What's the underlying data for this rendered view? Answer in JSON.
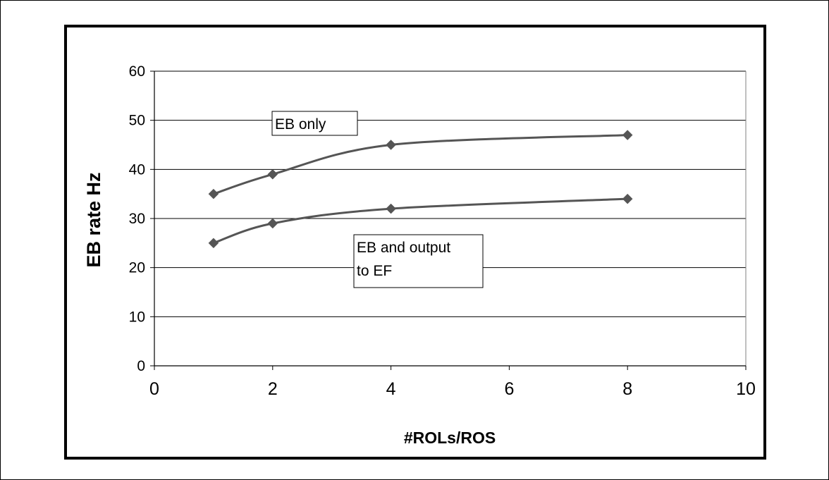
{
  "chart_data": {
    "type": "line",
    "xlabel": "#ROLs/ROS",
    "ylabel": "EB rate Hz",
    "xlim": [
      0,
      10
    ],
    "ylim": [
      0,
      60
    ],
    "x_ticks": [
      0,
      2,
      4,
      6,
      8,
      10
    ],
    "y_ticks": [
      0,
      10,
      20,
      30,
      40,
      50,
      60
    ],
    "grid": "horizontal",
    "legend": "none",
    "series_color": "#555555",
    "series": [
      {
        "x": [
          1,
          2,
          4,
          8
        ],
        "values": [
          35,
          39,
          45,
          47
        ]
      },
      {
        "x": [
          1,
          2,
          4,
          8
        ],
        "values": [
          25,
          29,
          32,
          34
        ]
      }
    ],
    "annotations": [
      {
        "lines": [
          "EB only"
        ],
        "series_index": 0
      },
      {
        "lines": [
          "EB and output",
          "to EF"
        ],
        "series_index": 1
      }
    ]
  }
}
